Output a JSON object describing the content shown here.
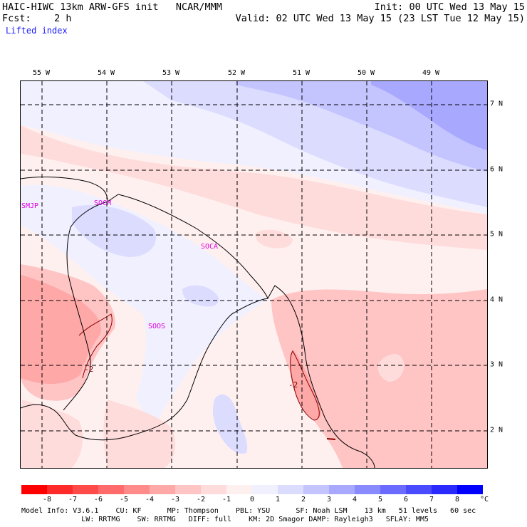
{
  "header": {
    "line1_left": "HAIC-HIWC 13km ARW-GFS init   NCAR/MMM",
    "line1_right": "Init: 00 UTC Wed 13 May 15",
    "line2_left": "Fcst:    2 h",
    "line2_right": "Valid: 02 UTC Wed 13 May 15 (23 LST Tue 12 May 15)",
    "field": "Lifted index"
  },
  "map": {
    "lon_labels": [
      "55 W",
      "54 W",
      "53 W",
      "52 W",
      "51 W",
      "50 W",
      "49 W"
    ],
    "lat_labels": [
      "7 N",
      "6 N",
      "5 N",
      "4 N",
      "3 N",
      "2 N"
    ],
    "stations": [
      "SMJP",
      "SOCM",
      "SOCA",
      "SOOS"
    ],
    "contour_labels": [
      "-2",
      "-2"
    ]
  },
  "colorbar": {
    "colors": [
      "#ff0000",
      "#ff2a2a",
      "#ff4a4a",
      "#ff6b6b",
      "#ff8a8a",
      "#ffa8a8",
      "#ffc4c4",
      "#ffdcdc",
      "#fff0f0",
      "#f0f0ff",
      "#dcdcff",
      "#c4c4ff",
      "#a8a8ff",
      "#8a8aff",
      "#6b6bff",
      "#4a4aff",
      "#2a2aff",
      "#0000ff"
    ],
    "ticks": [
      "-8",
      "-7",
      "-6",
      "-5",
      "-4",
      "-3",
      "-2",
      "-1",
      "0",
      "1",
      "2",
      "3",
      "4",
      "5",
      "6",
      "7",
      "8"
    ],
    "unit": "°C"
  },
  "footer": {
    "line1": "Model Info: V3.6.1    CU: KF      MP: Thompson    PBL: YSU      SF: Noah LSM    13 km   51 levels   60 sec",
    "line2": "              LW: RRTMG    SW: RRTMG   DIFF: full    KM: 2D Smagor DAMP: Rayleigh3   SFLAY: MM5"
  }
}
